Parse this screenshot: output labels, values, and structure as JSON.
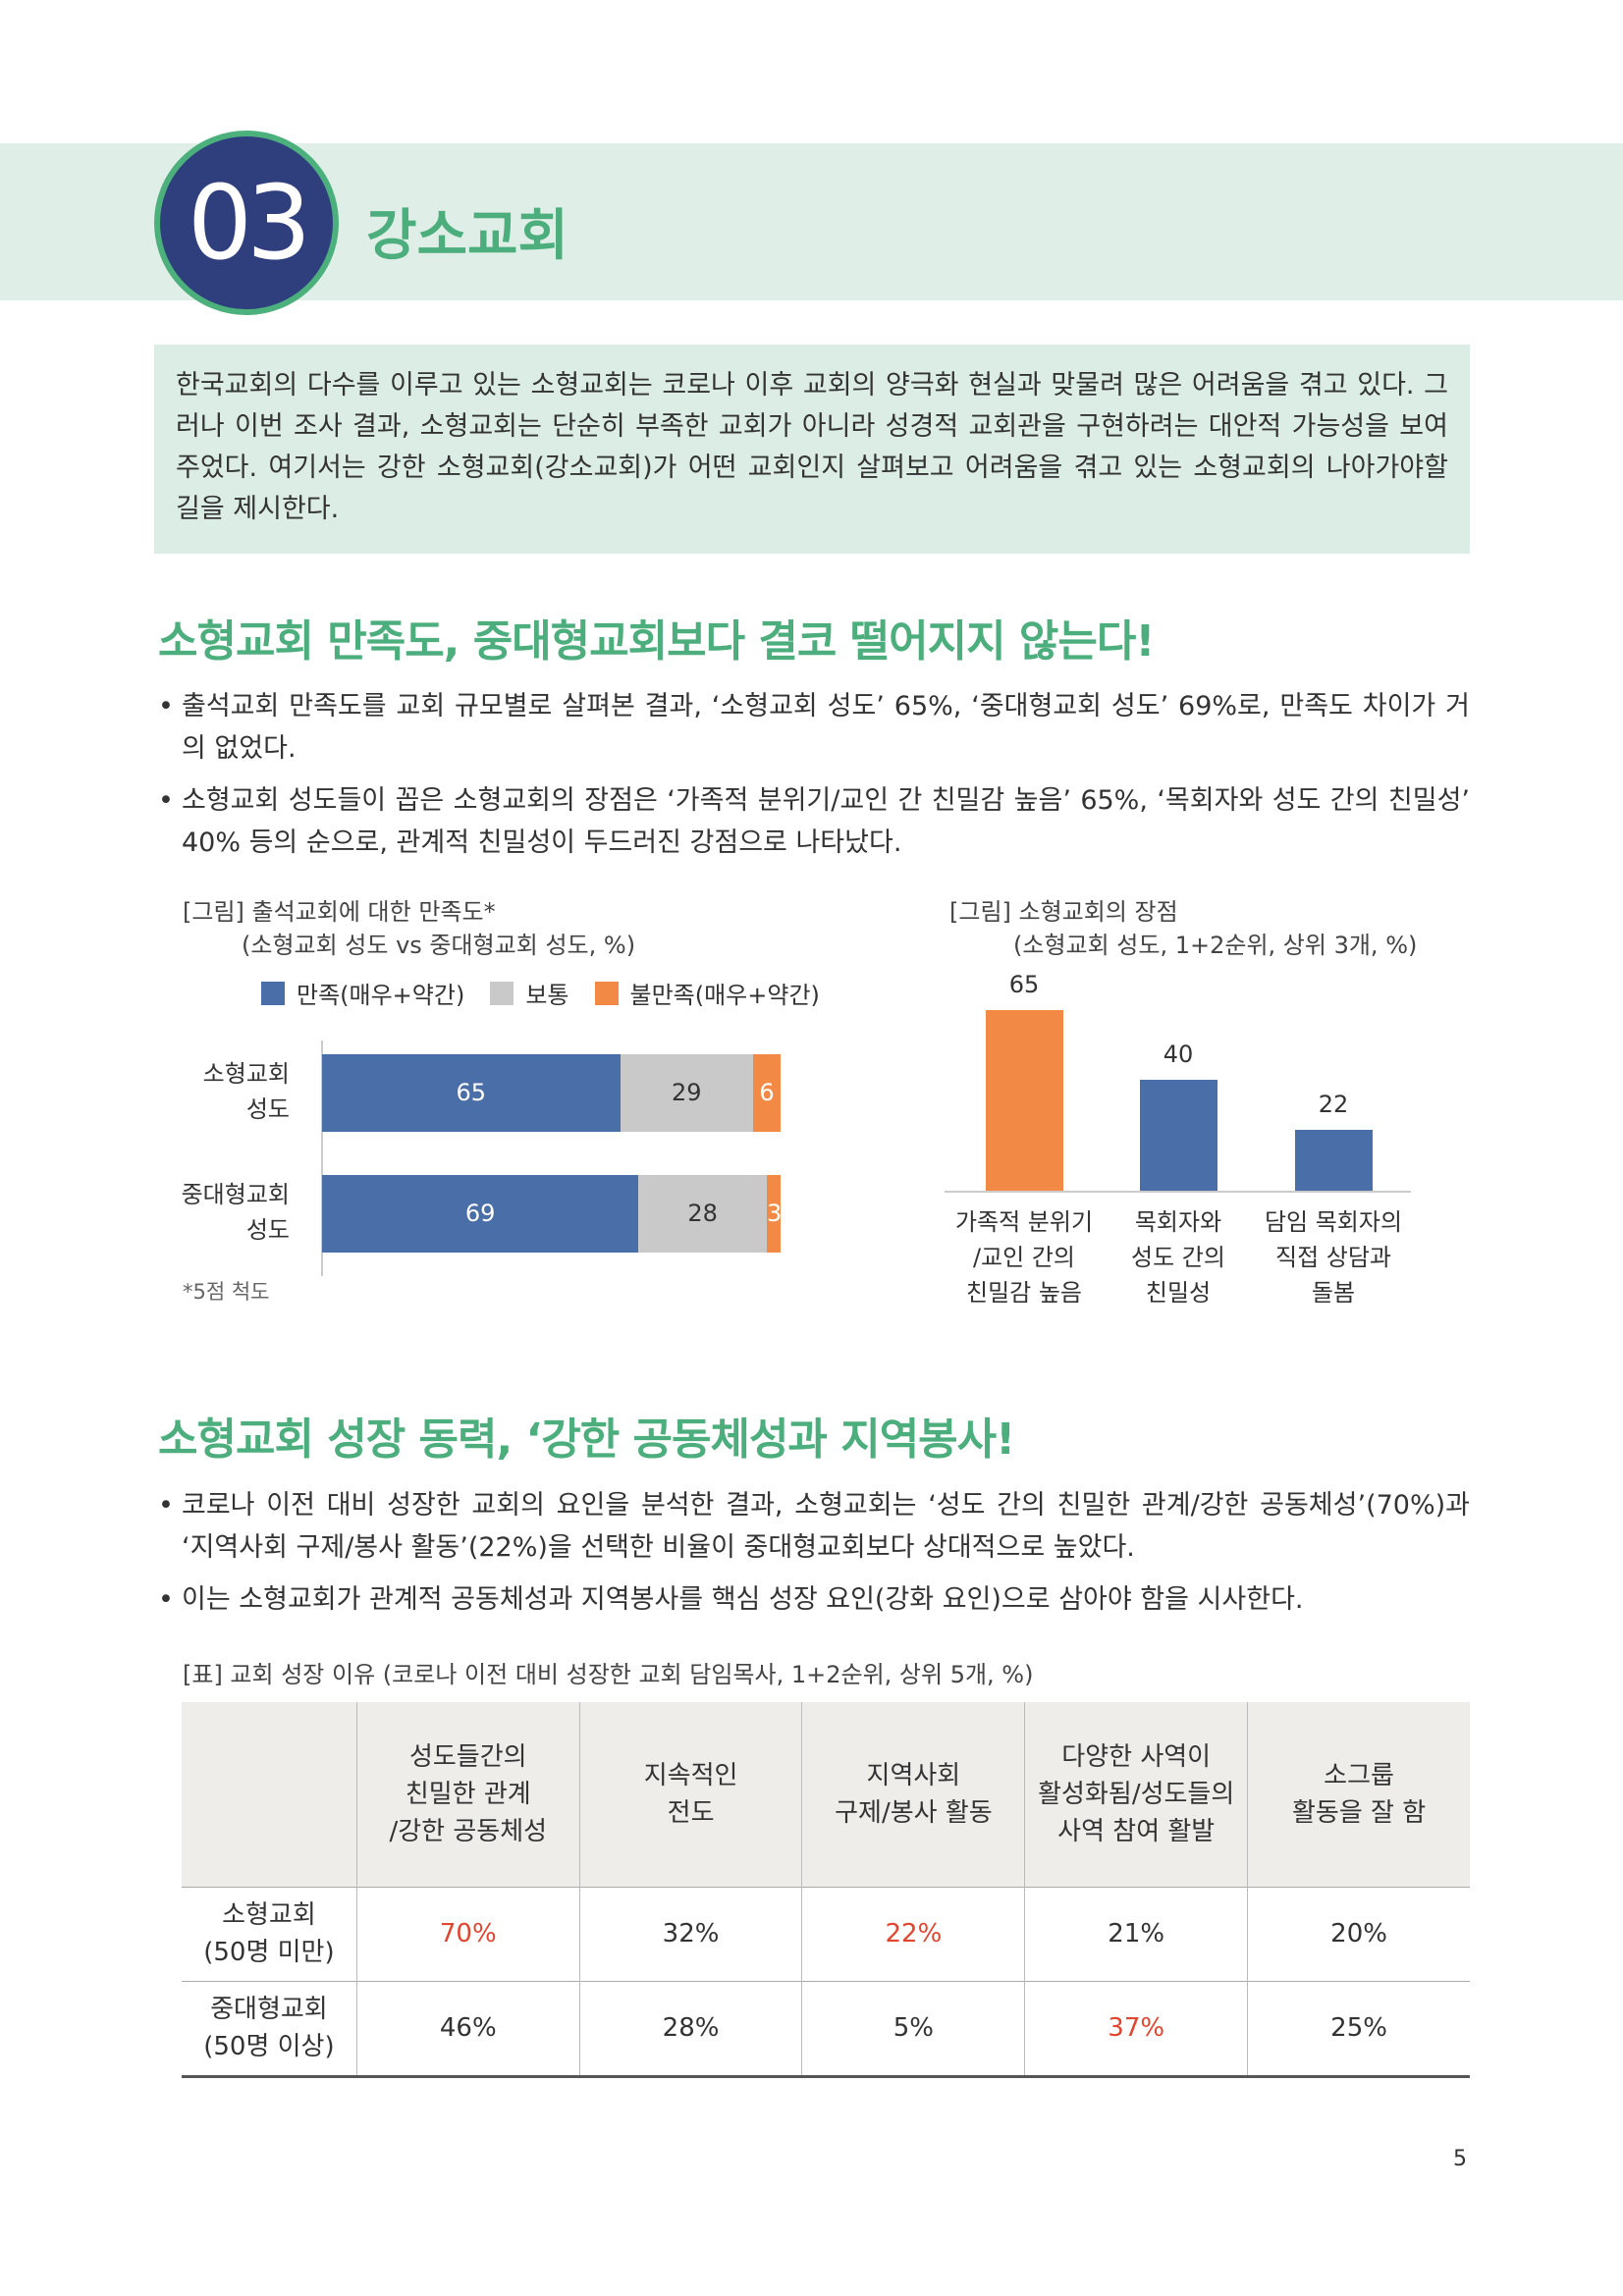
{
  "header": {
    "number": "03",
    "title": "강소교회"
  },
  "intro": "한국교회의 다수를 이루고 있는 소형교회는 코로나 이후 교회의 양극화 현실과 맞물려 많은 어려움을 겪고 있다. 그러나 이번 조사 결과, 소형교회는 단순히 부족한 교회가 아니라 성경적 교회관을 구현하려는 대안적 가능성을 보여주었다. 여기서는 강한 소형교회(강소교회)가 어떤 교회인지 살펴보고 어려움을 겪고 있는 소형교회의 나아가야할 길을 제시한다.",
  "section1": {
    "title": "소형교회 만족도, 중대형교회보다 결코 떨어지지 않는다!",
    "bullets": [
      "출석교회 만족도를 교회 규모별로 살펴본 결과, ‘소형교회 성도’ 65%, ‘중대형교회 성도’ 69%로, 만족도 차이가 거의 없었다.",
      "소형교회 성도들이 꼽은 소형교회의 장점은 ‘가족적 분위기/교인 간 친밀감 높음’ 65%, ‘목회자와 성도 간의 친밀성’ 40% 등의 순으로, 관계적 친밀성이 두드러진 강점으로 나타났다."
    ]
  },
  "chart_data": [
    {
      "type": "stacked-bar-horizontal",
      "title": "[그림] 출석교회에 대한 만족도*",
      "subtitle": "(소형교회 성도 vs 중대형교회 성도, %)",
      "categories": [
        "소형교회\n성도",
        "중대형교회\n성도"
      ],
      "series": [
        {
          "name": "만족(매우+약간)",
          "color": "#4a6ea8",
          "values": [
            65,
            69
          ]
        },
        {
          "name": "보통",
          "color": "#c9c9c9",
          "values": [
            29,
            28
          ]
        },
        {
          "name": "불만족(매우+약간)",
          "color": "#f28a45",
          "values": [
            6,
            3
          ]
        }
      ],
      "xlim": [
        0,
        100
      ],
      "annotation": "*5점 척도"
    },
    {
      "type": "bar",
      "title": "[그림] 소형교회의 장점",
      "subtitle": "(소형교회 성도, 1+2순위, 상위 3개, %)",
      "categories": [
        "가족적 분위기\n/교인 간의\n친밀감 높음",
        "목회자와\n성도 간의\n친밀성",
        "담임 목회자의\n직접 상담과\n돌봄"
      ],
      "values": [
        65,
        40,
        22
      ],
      "colors": [
        "#f28a45",
        "#4a6ea8",
        "#4a6ea8"
      ],
      "ylim": [
        0,
        70
      ]
    }
  ],
  "section2": {
    "title": "소형교회 성장 동력, ‘강한 공동체성과 지역봉사!",
    "bullets": [
      "코로나 이전 대비 성장한 교회의 요인을 분석한 결과, 소형교회는 ‘성도 간의 친밀한 관계/강한 공동체성’(70%)과 ‘지역사회 구제/봉사 활동’(22%)을 선택한 비율이 중대형교회보다 상대적으로 높았다.",
      "이는 소형교회가 관계적 공동체성과 지역봉사를 핵심 성장 요인(강화 요인)으로 삼아야 함을 시사한다."
    ]
  },
  "table": {
    "caption": "[표] 교회 성장 이유 (코로나 이전 대비 성장한 교회 담임목사, 1+2순위, 상위 5개, %)",
    "columns": [
      "성도들간의\n친밀한 관계\n/강한 공동체성",
      "지속적인\n전도",
      "지역사회\n구제/봉사 활동",
      "다양한 사역이\n활성화됨/성도들의\n사역 참여 활발",
      "소그룹\n활동을 잘 함"
    ],
    "rows": [
      {
        "label": "소형교회\n(50명 미만)",
        "cells": [
          "70%",
          "32%",
          "22%",
          "21%",
          "20%"
        ],
        "highlight": [
          true,
          false,
          true,
          false,
          false
        ]
      },
      {
        "label": "중대형교회\n(50명 이상)",
        "cells": [
          "46%",
          "28%",
          "5%",
          "37%",
          "25%"
        ],
        "highlight": [
          false,
          false,
          false,
          true,
          false
        ]
      }
    ],
    "highlight_color": "#e0452f"
  },
  "page_number": "5"
}
